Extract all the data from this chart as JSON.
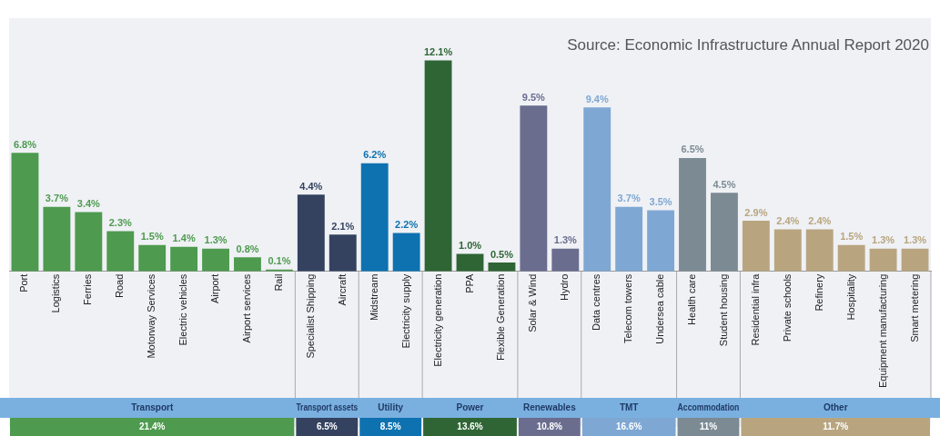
{
  "chart_data": {
    "type": "bar",
    "categories": [
      "Port",
      "Logistics",
      "Ferries",
      "Road",
      "Motorway Services",
      "Electric vehicles",
      "Airport",
      "Airport services",
      "Rail",
      "Specialist Shipping",
      "Aircraft",
      "Midstream",
      "Electricity supply",
      "Electricity generation",
      "PPA",
      "Flexible Generation",
      "Solar & Wind",
      "Hydro",
      "Data centres",
      "Telecom towers",
      "Undersea cable",
      "Health care",
      "Student housing",
      "Residential infra",
      "Private schools",
      "Refinery",
      "Hospitality",
      "Equipment manufacturing",
      "Smart metering"
    ],
    "values": [
      6.8,
      3.7,
      3.4,
      2.3,
      1.5,
      1.4,
      1.3,
      0.8,
      0.1,
      4.4,
      2.1,
      6.2,
      2.2,
      12.1,
      1.0,
      0.5,
      9.5,
      1.3,
      9.4,
      3.7,
      3.5,
      6.5,
      4.5,
      2.9,
      2.4,
      2.4,
      1.5,
      1.3,
      1.3
    ],
    "value_labels": [
      "6.8%",
      "3.7%",
      "3.4%",
      "2.3%",
      "1.5%",
      "1.4%",
      "1.3%",
      "0.8%",
      "0.1%",
      "4.4%",
      "2.1%",
      "6.2%",
      "2.2%",
      "12.1%",
      "1.0%",
      "0.5%",
      "9.5%",
      "1.3%",
      "9.4%",
      "3.7%",
      "3.5%",
      "6.5%",
      "4.5%",
      "2.9%",
      "2.4%",
      "2.4%",
      "1.5%",
      "1.3%",
      "1.3%"
    ],
    "colors": [
      "#4e9a4f",
      "#4e9a4f",
      "#4e9a4f",
      "#4e9a4f",
      "#4e9a4f",
      "#4e9a4f",
      "#4e9a4f",
      "#4e9a4f",
      "#4e9a4f",
      "#34425f",
      "#34425f",
      "#0e72b0",
      "#0e72b0",
      "#2f6535",
      "#2f6535",
      "#2f6535",
      "#6a6d8e",
      "#6a6d8e",
      "#7ea7d3",
      "#7ea7d3",
      "#7ea7d3",
      "#7c8a93",
      "#7c8a93",
      "#b8a57f",
      "#b8a57f",
      "#b8a57f",
      "#b8a57f",
      "#b8a57f",
      "#b8a57f"
    ],
    "tick_labels": "x",
    "annotations": [
      "Transport",
      "21.4%",
      "Transport assets",
      "6.5%",
      "Utility",
      "8.5%",
      "Power",
      "13.6%",
      "Renewables",
      "10.8%",
      "TMT",
      "16.6%",
      "Accommodation",
      "11%",
      "Other",
      "11.7%",
      "Source: Economic Infrastructure Annual Report 2020"
    ],
    "grid": false,
    "legend": false
  }
}
